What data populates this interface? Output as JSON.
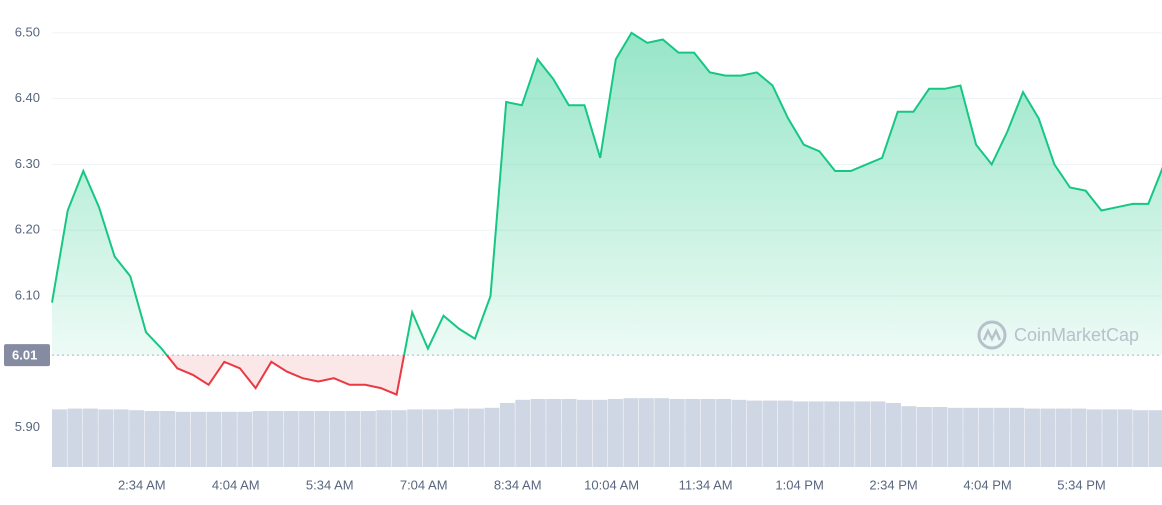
{
  "chart_data": {
    "type": "line",
    "watermark": "CoinMarketCap",
    "baseline": {
      "value": 6.01,
      "label": "6.01"
    },
    "up_color": "#16c784",
    "down_color": "#ea3943",
    "grid": true,
    "xlim": [
      68,
      1133
    ],
    "ylim": [
      5.84,
      6.55
    ],
    "yticks": [
      {
        "value": 5.9,
        "label": "5.90"
      },
      {
        "value": 6.1,
        "label": "6.10"
      },
      {
        "value": 6.2,
        "label": "6.20"
      },
      {
        "value": 6.3,
        "label": "6.30"
      },
      {
        "value": 6.4,
        "label": "6.40"
      },
      {
        "value": 6.5,
        "label": "6.50"
      }
    ],
    "xticks": [
      {
        "value": 154,
        "label": "2:34 AM"
      },
      {
        "value": 244,
        "label": "4:04 AM"
      },
      {
        "value": 334,
        "label": "5:34 AM"
      },
      {
        "value": 424,
        "label": "7:04 AM"
      },
      {
        "value": 514,
        "label": "8:34 AM"
      },
      {
        "value": 604,
        "label": "10:04 AM"
      },
      {
        "value": 694,
        "label": "11:34 AM"
      },
      {
        "value": 784,
        "label": "1:04 PM"
      },
      {
        "value": 874,
        "label": "2:34 PM"
      },
      {
        "value": 964,
        "label": "4:04 PM"
      },
      {
        "value": 1054,
        "label": "5:34 PM"
      }
    ],
    "x": [
      68,
      83,
      98,
      113,
      128,
      143,
      158,
      173,
      188,
      203,
      218,
      233,
      248,
      263,
      278,
      293,
      308,
      323,
      338,
      353,
      368,
      383,
      398,
      413,
      428,
      443,
      458,
      473,
      488,
      503,
      518,
      533,
      548,
      563,
      578,
      593,
      608,
      623,
      638,
      653,
      668,
      683,
      698,
      713,
      728,
      743,
      758,
      773,
      788,
      803,
      818,
      833,
      848,
      863,
      878,
      893,
      908,
      923,
      938,
      953,
      968,
      983,
      998,
      1013,
      1028,
      1043,
      1058,
      1073,
      1088,
      1103,
      1118,
      1133
    ],
    "values": [
      6.09,
      6.23,
      6.29,
      6.235,
      6.16,
      6.13,
      6.045,
      6.02,
      5.99,
      5.98,
      5.965,
      6.0,
      5.99,
      5.96,
      6.0,
      5.985,
      5.975,
      5.97,
      5.975,
      5.965,
      5.965,
      5.96,
      5.95,
      6.075,
      6.02,
      6.07,
      6.05,
      6.035,
      6.1,
      6.395,
      6.39,
      6.46,
      6.43,
      6.39,
      6.39,
      6.31,
      6.46,
      6.5,
      6.485,
      6.49,
      6.47,
      6.47,
      6.44,
      6.435,
      6.435,
      6.44,
      6.42,
      6.37,
      6.33,
      6.32,
      6.29,
      6.29,
      6.3,
      6.31,
      6.38,
      6.38,
      6.415,
      6.415,
      6.42,
      6.33,
      6.3,
      6.35,
      6.41,
      6.37,
      6.3,
      6.265,
      6.26,
      6.23,
      6.235,
      6.24,
      6.24,
      6.3
    ],
    "volume": {
      "color": "#cfd6e4",
      "ylim": [
        0,
        100
      ],
      "values": [
        72,
        73,
        73,
        72,
        72,
        71,
        70,
        70,
        69,
        69,
        69,
        69,
        69,
        70,
        70,
        70,
        70,
        70,
        70,
        70,
        70,
        71,
        71,
        72,
        72,
        72,
        73,
        73,
        74,
        80,
        84,
        85,
        85,
        85,
        84,
        84,
        85,
        86,
        86,
        86,
        85,
        85,
        85,
        85,
        84,
        83,
        83,
        83,
        82,
        82,
        82,
        82,
        82,
        82,
        80,
        76,
        75,
        75,
        74,
        74,
        74,
        74,
        74,
        73,
        73,
        73,
        73,
        72,
        72,
        72,
        71,
        71
      ]
    }
  }
}
